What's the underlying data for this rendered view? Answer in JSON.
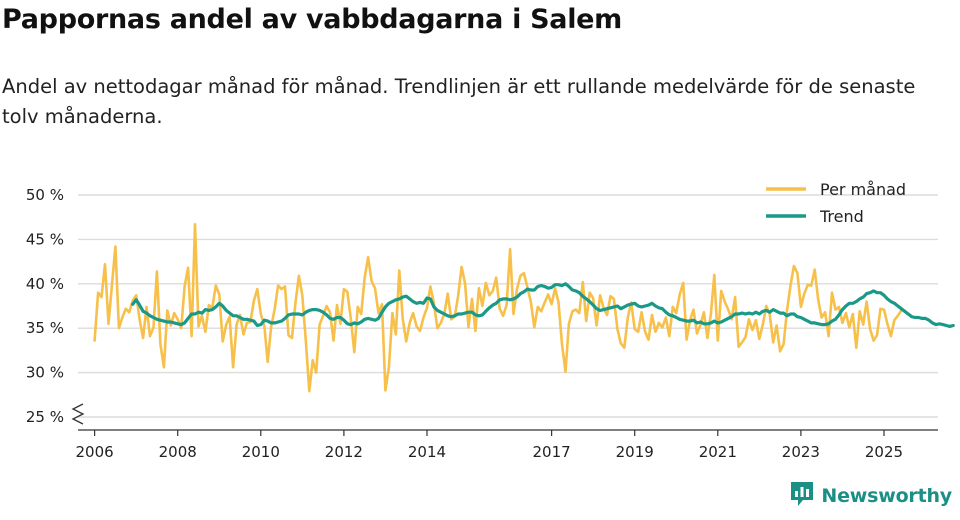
{
  "title": "Pappornas andel av vabbdagarna i Salem",
  "subtitle": "Andel av nettodagar månad för månad. Trendlinjen är ett rullande medelvärde för de senaste tolv månaderna.",
  "brand": {
    "name": "Newsworthy",
    "icon": "newsworthy-logo-icon",
    "color": "#1a8f85"
  },
  "chart_data": {
    "type": "line",
    "title": "Pappornas andel av vabbdagarna i Salem",
    "xlabel": "",
    "ylabel": "",
    "ylim": [
      25,
      50
    ],
    "yticks": [
      25,
      30,
      35,
      40,
      45,
      50
    ],
    "ytick_labels": [
      "25 %",
      "30 %",
      "35 %",
      "40 %",
      "45 %",
      "50 %"
    ],
    "xlim": [
      2005.6,
      2026.3
    ],
    "xticks": [
      2006,
      2008,
      2010,
      2012,
      2014,
      2017,
      2019,
      2021,
      2023,
      2025
    ],
    "xtick_labels": [
      "2006",
      "2008",
      "2010",
      "2012",
      "2014",
      "2017",
      "2019",
      "2021",
      "2023",
      "2025"
    ],
    "grid": true,
    "legend": "top-right",
    "series": [
      {
        "name": "Per månad",
        "color": "#f7c04a",
        "x_start": 2006.0,
        "step": 0.08333,
        "values": [
          33.6,
          39.0,
          38.5,
          42.2,
          35.5,
          39.8,
          44.2,
          35.0,
          36.2,
          37.2,
          36.8,
          38.1,
          38.7,
          36.0,
          33.9,
          37.4,
          34.1,
          35.1,
          41.4,
          33.2,
          30.6,
          37.0,
          35.3,
          36.7,
          36.0,
          35.0,
          39.7,
          41.8,
          34.1,
          46.7,
          35.2,
          36.4,
          34.6,
          37.6,
          37.3,
          39.8,
          38.8,
          33.5,
          35.4,
          36.3,
          30.6,
          35.4,
          36.5,
          34.3,
          35.6,
          35.7,
          38.1,
          39.4,
          36.6,
          35.3,
          31.2,
          35.2,
          37.1,
          39.8,
          39.4,
          39.7,
          34.2,
          33.9,
          37.8,
          40.9,
          38.7,
          33.6,
          27.9,
          31.4,
          30.0,
          35.4,
          36.4,
          37.5,
          36.8,
          33.6,
          37.6,
          35.5,
          39.4,
          39.1,
          36.1,
          32.3,
          37.4,
          36.6,
          40.7,
          43.0,
          40.3,
          39.5,
          36.7,
          37.7,
          28.0,
          30.6,
          36.7,
          34.3,
          41.5,
          36.1,
          33.5,
          35.6,
          36.7,
          35.2,
          34.7,
          36.2,
          37.3,
          39.7,
          37.8,
          35.0,
          35.6,
          36.6,
          38.9,
          36.0,
          36.3,
          38.6,
          41.9,
          40.0,
          35.1,
          38.3,
          34.7,
          39.5,
          37.5,
          40.1,
          38.7,
          39.2,
          40.7,
          37.2,
          36.4,
          37.6,
          43.9,
          36.6,
          39.4,
          40.9,
          41.2,
          39.6,
          38.0,
          35.1,
          37.4,
          36.9,
          37.9,
          38.8,
          37.7,
          39.5,
          37.9,
          33.2,
          30.1,
          35.5,
          36.9,
          37.1,
          36.7,
          40.2,
          35.8,
          39.0,
          38.4,
          35.3,
          38.7,
          37.3,
          36.5,
          38.6,
          38.3,
          34.9,
          33.3,
          32.8,
          36.2,
          37.9,
          34.9,
          34.6,
          36.8,
          34.6,
          33.7,
          36.5,
          34.6,
          35.6,
          35.1,
          36.2,
          34.1,
          37.4,
          36.7,
          38.8,
          40.1,
          33.7,
          35.9,
          37.1,
          34.4,
          35.4,
          36.8,
          33.9,
          36.6,
          41.0,
          33.6,
          39.2,
          38.0,
          37.1,
          36.0,
          38.5,
          32.9,
          33.4,
          34.0,
          36.0,
          34.8,
          35.9,
          33.8,
          35.4,
          37.5,
          36.6,
          33.4,
          35.3,
          32.4,
          33.2,
          37.0,
          39.8,
          42.0,
          41.2,
          37.4,
          38.9,
          39.9,
          39.8,
          41.6,
          38.2,
          36.2,
          36.8,
          34.1,
          39.0,
          37.1,
          37.4,
          35.6,
          36.7,
          35.1,
          36.6,
          32.8,
          36.9,
          35.4,
          38.0,
          34.9,
          33.6,
          34.2,
          37.2,
          37.1,
          35.5,
          34.1,
          35.9,
          36.4,
          37.0
        ]
      },
      {
        "name": "Trend",
        "color": "#1a9988",
        "x_start": 2006.917,
        "step": 0.08333,
        "values": [
          37.7,
          38.2,
          37.6,
          36.9,
          36.7,
          36.4,
          36.2,
          36.0,
          35.9,
          35.8,
          35.7,
          35.7,
          35.6,
          35.5,
          35.4,
          35.6,
          36.1,
          36.6,
          36.6,
          36.8,
          36.7,
          37.1,
          37.0,
          37.1,
          37.4,
          37.8,
          37.5,
          37.0,
          36.7,
          36.4,
          36.4,
          36.2,
          36.0,
          36.0,
          35.9,
          35.8,
          35.3,
          35.4,
          35.9,
          35.8,
          35.6,
          35.6,
          35.7,
          35.8,
          36.1,
          36.5,
          36.6,
          36.6,
          36.6,
          36.5,
          36.8,
          37.0,
          37.1,
          37.1,
          37.0,
          36.8,
          36.5,
          36.1,
          36.0,
          36.2,
          36.2,
          35.9,
          35.5,
          35.4,
          35.6,
          35.5,
          35.7,
          36.0,
          36.1,
          36.0,
          35.9,
          36.1,
          36.8,
          37.4,
          37.8,
          38.0,
          38.2,
          38.3,
          38.5,
          38.6,
          38.3,
          38.0,
          37.8,
          37.9,
          37.8,
          38.4,
          38.3,
          37.4,
          37.0,
          36.8,
          36.6,
          36.4,
          36.3,
          36.4,
          36.6,
          36.6,
          36.7,
          36.8,
          36.8,
          36.5,
          36.4,
          36.5,
          36.9,
          37.3,
          37.6,
          37.8,
          38.2,
          38.3,
          38.3,
          38.2,
          38.3,
          38.5,
          38.9,
          39.1,
          39.4,
          39.3,
          39.3,
          39.7,
          39.8,
          39.7,
          39.5,
          39.6,
          39.9,
          39.9,
          39.8,
          40.0,
          39.7,
          39.3,
          39.2,
          39.0,
          38.6,
          38.3,
          38.0,
          37.6,
          37.2,
          37.0,
          37.1,
          37.2,
          37.3,
          37.4,
          37.5,
          37.2,
          37.4,
          37.6,
          37.7,
          37.8,
          37.5,
          37.4,
          37.5,
          37.6,
          37.8,
          37.5,
          37.3,
          37.2,
          36.8,
          36.5,
          36.4,
          36.2,
          36.0,
          35.9,
          35.8,
          35.8,
          35.9,
          35.6,
          35.7,
          35.5,
          35.5,
          35.6,
          35.8,
          35.6,
          35.7,
          35.9,
          36.1,
          36.3,
          36.6,
          36.6,
          36.7,
          36.6,
          36.7,
          36.6,
          36.8,
          36.6,
          36.9,
          37.0,
          36.8,
          37.1,
          36.9,
          36.7,
          36.7,
          36.4,
          36.6,
          36.6,
          36.3,
          36.2,
          36.0,
          35.8,
          35.6,
          35.6,
          35.5,
          35.4,
          35.4,
          35.5,
          35.8,
          36.0,
          36.5,
          37.1,
          37.5,
          37.8,
          37.8,
          38.0,
          38.3,
          38.5,
          38.9,
          39.0,
          39.2,
          39.0,
          39.0,
          38.7,
          38.3,
          38.0,
          37.8,
          37.5,
          37.2,
          36.9,
          36.6,
          36.3,
          36.2,
          36.2,
          36.1,
          36.1,
          35.9,
          35.6,
          35.4,
          35.5,
          35.4,
          35.3,
          35.2,
          35.3
        ]
      }
    ]
  }
}
